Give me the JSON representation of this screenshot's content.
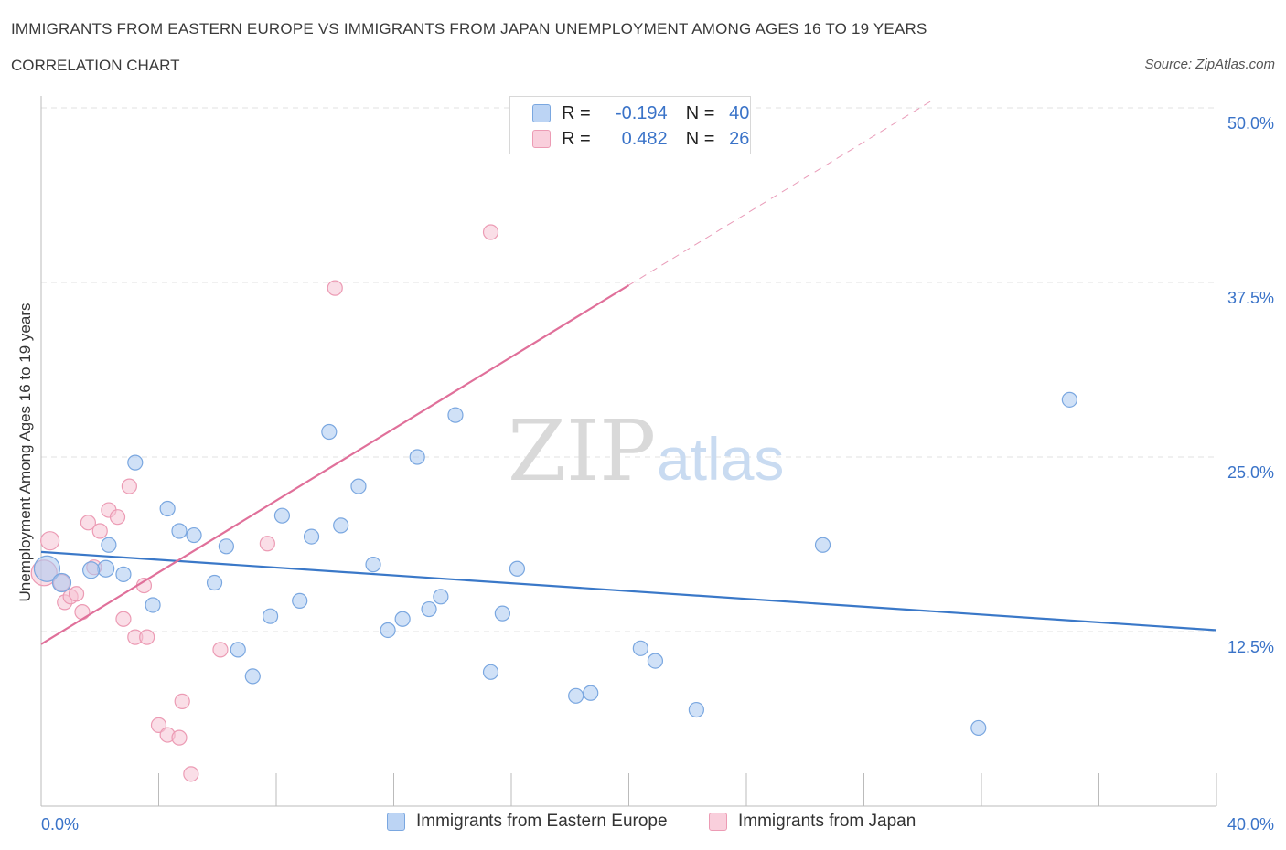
{
  "header": {
    "title": "IMMIGRANTS FROM EASTERN EUROPE VS IMMIGRANTS FROM JAPAN UNEMPLOYMENT AMONG AGES 16 TO 19 YEARS",
    "subtitle": "CORRELATION CHART",
    "source": "Source: ZipAtlas.com"
  },
  "watermark": {
    "zip": "ZIP",
    "atlas": "atlas"
  },
  "legend": {
    "rows": [
      {
        "r_label": "R =",
        "r_value": "-0.194",
        "n_label": "N =",
        "n_value": "40"
      },
      {
        "r_label": "R =",
        "r_value": "0.482",
        "n_label": "N =",
        "n_value": "26"
      }
    ]
  },
  "chart_data": {
    "type": "scatter",
    "title": "IMMIGRANTS FROM EASTERN EUROPE VS IMMIGRANTS FROM JAPAN UNEMPLOYMENT AMONG AGES 16 TO 19 YEARS",
    "xlabel": "",
    "ylabel": "Unemployment Among Ages 16 to 19 years",
    "xlim": [
      0,
      40
    ],
    "ylim": [
      0,
      50
    ],
    "x_tick_labels": [
      "0.0%",
      "40.0%"
    ],
    "y_ticks": [
      {
        "value": 12.5,
        "label": "12.5%"
      },
      {
        "value": 25.0,
        "label": "25.0%"
      },
      {
        "value": 37.5,
        "label": "37.5%"
      },
      {
        "value": 50.0,
        "label": "50.0%"
      }
    ],
    "series": [
      {
        "name": "Immigrants from Eastern Europe",
        "color": "#a9c8f0",
        "stroke": "#7aa7e0",
        "line_color": "#3a78c8",
        "r": -0.194,
        "n": 40,
        "trend": {
          "x0": 0,
          "y0": 18.2,
          "x1": 40,
          "y1": 12.6
        },
        "points": [
          {
            "x": 0.2,
            "y": 17.0,
            "s": 14
          },
          {
            "x": 0.7,
            "y": 16.0,
            "s": 10
          },
          {
            "x": 2.2,
            "y": 17.0,
            "s": 9
          },
          {
            "x": 1.7,
            "y": 16.9,
            "s": 9
          },
          {
            "x": 2.3,
            "y": 18.7,
            "s": 8
          },
          {
            "x": 2.8,
            "y": 16.6,
            "s": 8
          },
          {
            "x": 3.2,
            "y": 24.6,
            "s": 8
          },
          {
            "x": 3.8,
            "y": 14.4,
            "s": 8
          },
          {
            "x": 4.3,
            "y": 21.3,
            "s": 8
          },
          {
            "x": 4.7,
            "y": 19.7,
            "s": 8
          },
          {
            "x": 5.2,
            "y": 19.4,
            "s": 8
          },
          {
            "x": 5.9,
            "y": 16.0,
            "s": 8
          },
          {
            "x": 6.3,
            "y": 18.6,
            "s": 8
          },
          {
            "x": 6.7,
            "y": 11.2,
            "s": 8
          },
          {
            "x": 7.2,
            "y": 9.3,
            "s": 8
          },
          {
            "x": 7.8,
            "y": 13.6,
            "s": 8
          },
          {
            "x": 8.2,
            "y": 20.8,
            "s": 8
          },
          {
            "x": 8.8,
            "y": 14.7,
            "s": 8
          },
          {
            "x": 9.2,
            "y": 19.3,
            "s": 8
          },
          {
            "x": 9.8,
            "y": 26.8,
            "s": 8
          },
          {
            "x": 10.2,
            "y": 20.1,
            "s": 8
          },
          {
            "x": 10.8,
            "y": 22.9,
            "s": 8
          },
          {
            "x": 11.3,
            "y": 17.3,
            "s": 8
          },
          {
            "x": 11.8,
            "y": 12.6,
            "s": 8
          },
          {
            "x": 12.3,
            "y": 13.4,
            "s": 8
          },
          {
            "x": 12.8,
            "y": 25.0,
            "s": 8
          },
          {
            "x": 13.2,
            "y": 14.1,
            "s": 8
          },
          {
            "x": 13.6,
            "y": 15.0,
            "s": 8
          },
          {
            "x": 14.1,
            "y": 28.0,
            "s": 8
          },
          {
            "x": 15.3,
            "y": 9.6,
            "s": 8
          },
          {
            "x": 15.7,
            "y": 13.8,
            "s": 8
          },
          {
            "x": 16.2,
            "y": 17.0,
            "s": 8
          },
          {
            "x": 18.2,
            "y": 7.9,
            "s": 8
          },
          {
            "x": 18.7,
            "y": 8.1,
            "s": 8
          },
          {
            "x": 20.4,
            "y": 11.3,
            "s": 8
          },
          {
            "x": 20.9,
            "y": 10.4,
            "s": 8
          },
          {
            "x": 22.3,
            "y": 6.9,
            "s": 8
          },
          {
            "x": 26.6,
            "y": 18.7,
            "s": 8
          },
          {
            "x": 31.9,
            "y": 5.6,
            "s": 8
          },
          {
            "x": 35.0,
            "y": 29.1,
            "s": 8
          }
        ]
      },
      {
        "name": "Immigrants from Japan",
        "color": "#f6c3d3",
        "stroke": "#ec9bb4",
        "line_color": "#e0709a",
        "r": 0.482,
        "n": 26,
        "trend": {
          "x0": 0,
          "y0": 11.6,
          "x1": 20,
          "y1": 37.3,
          "x_dash_end": 30.3,
          "y_dash_end": 50.5
        },
        "points": [
          {
            "x": 0.1,
            "y": 16.7,
            "s": 14
          },
          {
            "x": 0.3,
            "y": 19.0,
            "s": 10
          },
          {
            "x": 0.7,
            "y": 16.0,
            "s": 9
          },
          {
            "x": 0.8,
            "y": 14.6,
            "s": 8
          },
          {
            "x": 1.0,
            "y": 15.0,
            "s": 8
          },
          {
            "x": 1.2,
            "y": 15.2,
            "s": 8
          },
          {
            "x": 1.4,
            "y": 13.9,
            "s": 8
          },
          {
            "x": 1.6,
            "y": 20.3,
            "s": 8
          },
          {
            "x": 2.0,
            "y": 19.7,
            "s": 8
          },
          {
            "x": 1.8,
            "y": 17.1,
            "s": 8
          },
          {
            "x": 2.3,
            "y": 21.2,
            "s": 8
          },
          {
            "x": 2.6,
            "y": 20.7,
            "s": 8
          },
          {
            "x": 2.8,
            "y": 13.4,
            "s": 8
          },
          {
            "x": 3.0,
            "y": 22.9,
            "s": 8
          },
          {
            "x": 3.2,
            "y": 12.1,
            "s": 8
          },
          {
            "x": 3.5,
            "y": 15.8,
            "s": 8
          },
          {
            "x": 3.6,
            "y": 12.1,
            "s": 8
          },
          {
            "x": 4.0,
            "y": 5.8,
            "s": 8
          },
          {
            "x": 4.3,
            "y": 5.1,
            "s": 8
          },
          {
            "x": 4.7,
            "y": 4.9,
            "s": 8
          },
          {
            "x": 4.8,
            "y": 7.5,
            "s": 8
          },
          {
            "x": 5.1,
            "y": 2.3,
            "s": 8
          },
          {
            "x": 6.1,
            "y": 11.2,
            "s": 8
          },
          {
            "x": 7.7,
            "y": 18.8,
            "s": 8
          },
          {
            "x": 10.0,
            "y": 37.1,
            "s": 8
          },
          {
            "x": 15.3,
            "y": 41.1,
            "s": 8
          }
        ]
      }
    ]
  }
}
